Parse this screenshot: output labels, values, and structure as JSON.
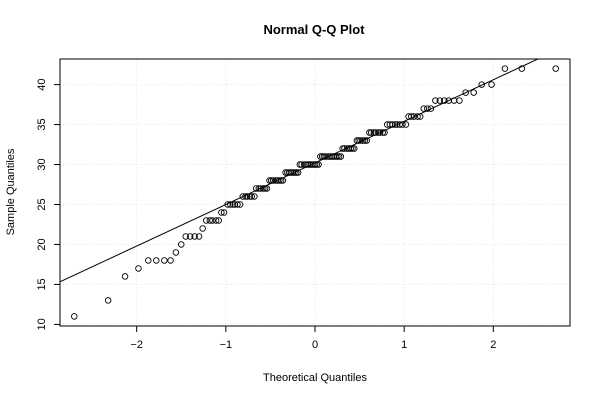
{
  "chart_data": {
    "type": "scatter",
    "title": "Normal Q-Q Plot",
    "xlabel": "Theoretical Quantiles",
    "ylabel": "Sample Quantiles",
    "xlim": [
      -2.86,
      2.86
    ],
    "ylim": [
      9.8,
      43.2
    ],
    "x_ticks": [
      -2,
      -1,
      0,
      1,
      2
    ],
    "x_tick_labels": [
      "−2",
      "−1",
      "0",
      "1",
      "2"
    ],
    "y_ticks": [
      10,
      15,
      20,
      25,
      30,
      35,
      40
    ],
    "y_tick_labels": [
      "10",
      "15",
      "20",
      "25",
      "30",
      "35",
      "40"
    ],
    "grid": true,
    "reference_line": {
      "intercept": 30.2,
      "slope": 5.2
    },
    "points": [
      [
        -2.7,
        11
      ],
      [
        -2.32,
        13
      ],
      [
        -2.13,
        16
      ],
      [
        -1.98,
        17
      ],
      [
        -1.87,
        18
      ],
      [
        -1.78,
        18
      ],
      [
        -1.69,
        18
      ],
      [
        -1.62,
        18
      ],
      [
        -1.56,
        19
      ],
      [
        -1.5,
        20
      ],
      [
        -1.45,
        21
      ],
      [
        -1.4,
        21
      ],
      [
        -1.35,
        21
      ],
      [
        -1.3,
        21
      ],
      [
        -1.26,
        22
      ],
      [
        -1.22,
        23
      ],
      [
        -1.18,
        23
      ],
      [
        -1.15,
        23
      ],
      [
        -1.11,
        23
      ],
      [
        -1.08,
        23
      ],
      [
        -1.05,
        24
      ],
      [
        -1.02,
        24
      ],
      [
        -0.98,
        25
      ],
      [
        -0.95,
        25
      ],
      [
        -0.92,
        25
      ],
      [
        -0.9,
        25
      ],
      [
        -0.87,
        25
      ],
      [
        -0.84,
        25
      ],
      [
        -0.81,
        26
      ],
      [
        -0.78,
        26
      ],
      [
        -0.76,
        26
      ],
      [
        -0.73,
        26
      ],
      [
        -0.71,
        26
      ],
      [
        -0.68,
        26
      ],
      [
        -0.66,
        27
      ],
      [
        -0.63,
        27
      ],
      [
        -0.61,
        27
      ],
      [
        -0.58,
        27
      ],
      [
        -0.56,
        27
      ],
      [
        -0.54,
        27
      ],
      [
        -0.51,
        28
      ],
      [
        -0.49,
        28
      ],
      [
        -0.47,
        28
      ],
      [
        -0.44,
        28
      ],
      [
        -0.42,
        28
      ],
      [
        -0.4,
        28
      ],
      [
        -0.38,
        28
      ],
      [
        -0.36,
        28
      ],
      [
        -0.33,
        29
      ],
      [
        -0.31,
        29
      ],
      [
        -0.29,
        29
      ],
      [
        -0.27,
        29
      ],
      [
        -0.25,
        29
      ],
      [
        -0.23,
        29
      ],
      [
        -0.21,
        29
      ],
      [
        -0.19,
        29
      ],
      [
        -0.17,
        30
      ],
      [
        -0.15,
        30
      ],
      [
        -0.12,
        30
      ],
      [
        -0.1,
        30
      ],
      [
        -0.08,
        30
      ],
      [
        -0.06,
        30
      ],
      [
        -0.04,
        30
      ],
      [
        -0.02,
        30
      ],
      [
        0.0,
        30
      ],
      [
        0.02,
        30
      ],
      [
        0.04,
        30
      ],
      [
        0.06,
        31
      ],
      [
        0.08,
        31
      ],
      [
        0.1,
        31
      ],
      [
        0.12,
        31
      ],
      [
        0.15,
        31
      ],
      [
        0.17,
        31
      ],
      [
        0.19,
        31
      ],
      [
        0.21,
        31
      ],
      [
        0.23,
        31
      ],
      [
        0.25,
        31
      ],
      [
        0.27,
        31
      ],
      [
        0.29,
        31
      ],
      [
        0.31,
        32
      ],
      [
        0.33,
        32
      ],
      [
        0.36,
        32
      ],
      [
        0.38,
        32
      ],
      [
        0.4,
        32
      ],
      [
        0.42,
        32
      ],
      [
        0.44,
        32
      ],
      [
        0.47,
        33
      ],
      [
        0.49,
        33
      ],
      [
        0.51,
        33
      ],
      [
        0.54,
        33
      ],
      [
        0.56,
        33
      ],
      [
        0.58,
        33
      ],
      [
        0.61,
        34
      ],
      [
        0.63,
        34
      ],
      [
        0.66,
        34
      ],
      [
        0.68,
        34
      ],
      [
        0.71,
        34
      ],
      [
        0.73,
        34
      ],
      [
        0.76,
        34
      ],
      [
        0.78,
        34
      ],
      [
        0.81,
        35
      ],
      [
        0.84,
        35
      ],
      [
        0.87,
        35
      ],
      [
        0.9,
        35
      ],
      [
        0.92,
        35
      ],
      [
        0.95,
        35
      ],
      [
        0.98,
        35
      ],
      [
        1.02,
        35
      ],
      [
        1.05,
        36
      ],
      [
        1.08,
        36
      ],
      [
        1.11,
        36
      ],
      [
        1.15,
        36
      ],
      [
        1.18,
        36
      ],
      [
        1.22,
        37
      ],
      [
        1.26,
        37
      ],
      [
        1.3,
        37
      ],
      [
        1.35,
        38
      ],
      [
        1.4,
        38
      ],
      [
        1.45,
        38
      ],
      [
        1.5,
        38
      ],
      [
        1.56,
        38
      ],
      [
        1.62,
        38
      ],
      [
        1.69,
        39
      ],
      [
        1.78,
        39
      ],
      [
        1.87,
        40
      ],
      [
        1.98,
        40
      ],
      [
        2.13,
        42
      ],
      [
        2.32,
        42
      ],
      [
        2.7,
        42
      ]
    ]
  }
}
